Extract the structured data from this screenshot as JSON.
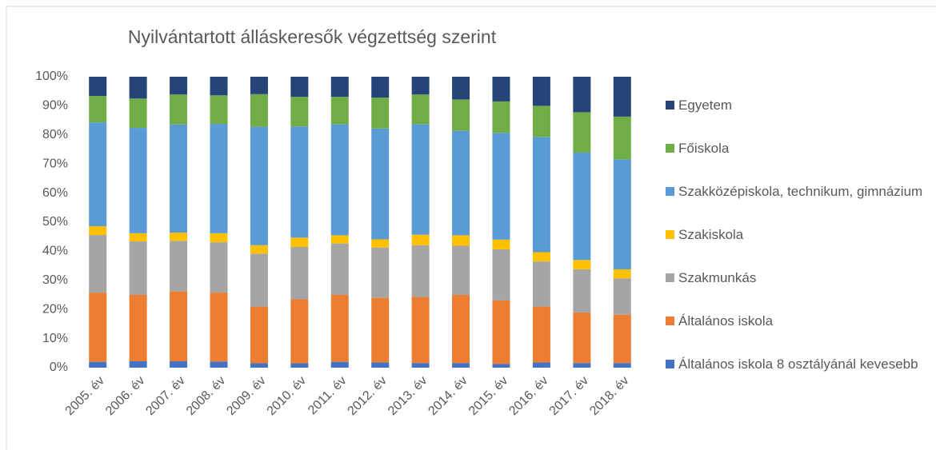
{
  "chart_data": {
    "type": "stacked_bar",
    "title": "Nyilvántartott álláskeresők végzettség szerint",
    "categories": [
      "2005. év",
      "2006. év",
      "2007. év",
      "2008. év",
      "2009. év",
      "2010. év",
      "2011. év",
      "2012. év",
      "2013. év",
      "2014. év",
      "2015. év",
      "2016. év",
      "2017. év",
      "2018. év"
    ],
    "series": [
      {
        "name": "Általános iskola 8 osztályánál kevesebb",
        "color": "#4472c4",
        "values": [
          2,
          2.2,
          2.2,
          2.1,
          1.5,
          1.5,
          2,
          1.8,
          1.6,
          1.6,
          1.3,
          1.8,
          1.6,
          1.6
        ]
      },
      {
        "name": "Általános iskola",
        "color": "#ed7d31",
        "values": [
          23.8,
          22.8,
          24,
          23.7,
          19.5,
          22,
          23,
          22.2,
          22.7,
          23.4,
          21.8,
          19.2,
          17.4,
          16.6
        ]
      },
      {
        "name": "Szakmunkás",
        "color": "#a5a5a5",
        "values": [
          19.8,
          18.4,
          17.4,
          17.3,
          18.2,
          18,
          17.7,
          17.3,
          17.8,
          16.9,
          17.6,
          15.5,
          14.8,
          12.5
        ]
      },
      {
        "name": "Szakiskola",
        "color": "#ffc000",
        "values": [
          3,
          2.8,
          2.8,
          3.1,
          2.9,
          3.2,
          2.8,
          2.8,
          3.6,
          3.6,
          3.3,
          3.2,
          3.2,
          3.1
        ]
      },
      {
        "name": "Szakközépiskola, technikum, gimnázium",
        "color": "#5b9bd5",
        "values": [
          35.7,
          36.2,
          37.2,
          37.6,
          40.7,
          38.2,
          38.2,
          38.1,
          38,
          35.9,
          36.7,
          39.6,
          36.9,
          37.8
        ]
      },
      {
        "name": "Főiskola",
        "color": "#70ad47",
        "values": [
          9.1,
          10.1,
          10.3,
          9.8,
          11.2,
          10.2,
          9.4,
          10.6,
          10.2,
          10.8,
          10.8,
          10.7,
          13.9,
          14.7
        ]
      },
      {
        "name": "Egyetem",
        "color": "#264478",
        "values": [
          6.6,
          7.5,
          6.1,
          6.4,
          6,
          6.9,
          6.9,
          7.2,
          6.1,
          7.8,
          8.5,
          10,
          12.2,
          13.7
        ]
      }
    ],
    "ylim": [
      0,
      100
    ],
    "yticks": [
      {
        "value": 0,
        "label": "0%"
      },
      {
        "value": 10,
        "label": "10%"
      },
      {
        "value": 20,
        "label": "20%"
      },
      {
        "value": 30,
        "label": "30%"
      },
      {
        "value": 40,
        "label": "40%"
      },
      {
        "value": 50,
        "label": "50%"
      },
      {
        "value": 60,
        "label": "60%"
      },
      {
        "value": 70,
        "label": "70%"
      },
      {
        "value": 80,
        "label": "80%"
      },
      {
        "value": 90,
        "label": "90%"
      },
      {
        "value": 100,
        "label": "100%"
      }
    ],
    "grid": false,
    "legend": "right"
  }
}
